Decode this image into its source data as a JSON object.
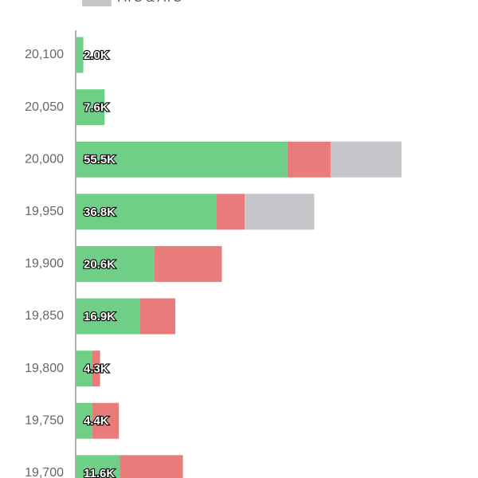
{
  "chart_data": {
    "type": "stacked-bar-horizontal",
    "categories": [
      "20,100",
      "20,050",
      "20,000",
      "19,950",
      "19,900",
      "19,850",
      "19,800",
      "19,750",
      "19,700"
    ],
    "series": [
      {
        "color": "#6fcf86",
        "values": [
          2000,
          7600,
          55500,
          36800,
          20600,
          16900,
          4300,
          4400,
          11600
        ],
        "value_labels": [
          "2.0K",
          "7.6K",
          "55.5K",
          "36.8K",
          "20.6K",
          "16.9K",
          "4.3K",
          "4.4K",
          "11.6K"
        ]
      },
      {
        "color": "#ea7b7b",
        "values": [
          0,
          0,
          11300,
          7500,
          17700,
          9200,
          2100,
          6900,
          16500
        ]
      },
      {
        "name": "ATC & ATC",
        "color": "#c4c6c9",
        "values": [
          0,
          0,
          18600,
          18200,
          0,
          0,
          0,
          0,
          0
        ]
      }
    ]
  }
}
